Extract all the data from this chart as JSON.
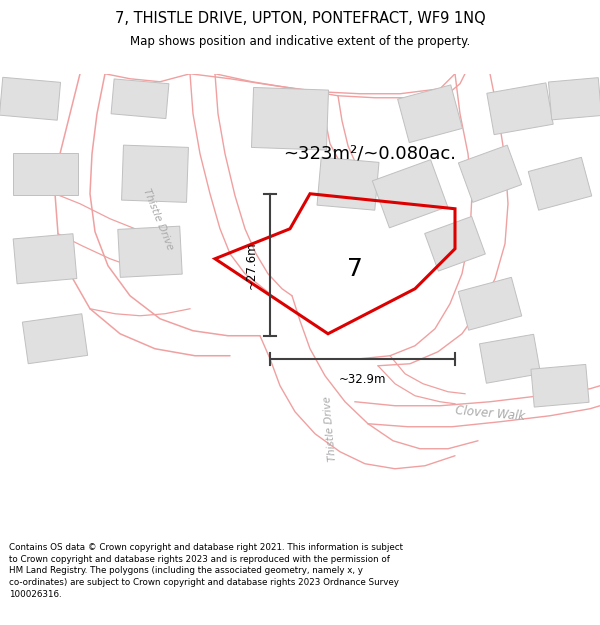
{
  "title": "7, THISTLE DRIVE, UPTON, PONTEFRACT, WF9 1NQ",
  "subtitle": "Map shows position and indicative extent of the property.",
  "footer": "Contains OS data © Crown copyright and database right 2021. This information is subject to Crown copyright and database rights 2023 and is reproduced with the permission of HM Land Registry. The polygons (including the associated geometry, namely x, y co-ordinates) are subject to Crown copyright and database rights 2023 Ordnance Survey 100026316.",
  "area_label": "~323m²/~0.080ac.",
  "width_label": "~32.9m",
  "height_label": "~27.6m",
  "property_label": "7",
  "road_label_1": "Thistle Drive",
  "road_label_2": "Thistle Drive",
  "road_label_3": "Clover Walk",
  "map_bg": "#ffffff",
  "road_line_color": "#f0a0a0",
  "property_line_color": "#dd0000",
  "dim_line_color": "#404040",
  "building_fill": "#e0e0e0",
  "building_edge": "#c0c0c0"
}
